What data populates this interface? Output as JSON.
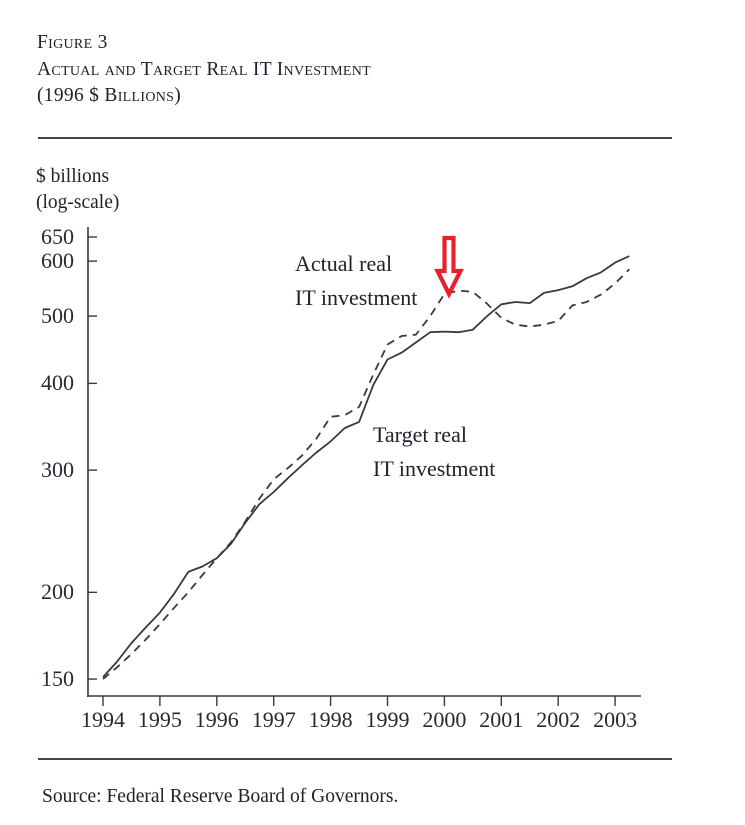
{
  "figure": {
    "label": "Figure 3",
    "title": "Actual and Target Real IT Investment",
    "subtitle": "(1996 $ Billions)"
  },
  "y_axis": {
    "unit_line1": "$ billions",
    "unit_line2": "(log-scale)",
    "ticks": [
      650,
      600,
      500,
      400,
      300,
      200,
      150
    ]
  },
  "x_axis": {
    "ticks": [
      1994,
      1995,
      1996,
      1997,
      1998,
      1999,
      2000,
      2001,
      2002,
      2003
    ]
  },
  "annotations": {
    "actual_line1": "Actual real",
    "actual_line2": "IT investment",
    "target_line1": "Target real",
    "target_line2": "IT investment",
    "arrow": {
      "direction": "down",
      "color": "#e8212c"
    }
  },
  "source": "Source: Federal Reserve Board of Governors.",
  "colors": {
    "line": "#3a3a3a",
    "rule": "#46464a",
    "text": "#20222c",
    "arrow_red": "#e8212c"
  },
  "chart_data": {
    "type": "line",
    "title": "Actual and Target Real IT Investment (1996 $ Billions)",
    "xlabel": "",
    "ylabel": "$ billions (log-scale)",
    "yscale": "log",
    "ylim": [
      150,
      650
    ],
    "xlim": [
      1994,
      2003.35
    ],
    "grid": false,
    "legend_position": "inline-labels",
    "x": [
      1994,
      1994.25,
      1994.5,
      1994.75,
      1995,
      1995.25,
      1995.5,
      1995.75,
      1996,
      1996.25,
      1996.5,
      1996.75,
      1997,
      1997.25,
      1997.5,
      1997.75,
      1998,
      1998.25,
      1998.5,
      1998.75,
      1999,
      1999.25,
      1999.5,
      1999.75,
      2000,
      2000.25,
      2000.5,
      2000.75,
      2001,
      2001.25,
      2001.5,
      2001.75,
      2002,
      2002.25,
      2002.5,
      2002.75,
      2003,
      2003.25
    ],
    "series": [
      {
        "name": "Actual real IT investment",
        "line_style": "dashed",
        "values": [
          150,
          156,
          163,
          171,
          180,
          190,
          200,
          212,
          224,
          236,
          253,
          273,
          291,
          302,
          315,
          333,
          358,
          360,
          370,
          412,
          455,
          468,
          470,
          500,
          538,
          544,
          542,
          521,
          497,
          486,
          483,
          486,
          492,
          518,
          524,
          537,
          557,
          584
        ]
      },
      {
        "name": "Target real IT investment",
        "line_style": "solid",
        "values": [
          151,
          159,
          169,
          178,
          187,
          199,
          214,
          218,
          224,
          235,
          252,
          268,
          279,
          292,
          305,
          318,
          330,
          345,
          352,
          398,
          433,
          443,
          458,
          474,
          475,
          474,
          478,
          500,
          520,
          524,
          522,
          540,
          545,
          552,
          567,
          578,
          597,
          610
        ]
      }
    ],
    "annotation_arrow": {
      "points_to_x": 2000.1,
      "points_to_value": 544
    }
  }
}
